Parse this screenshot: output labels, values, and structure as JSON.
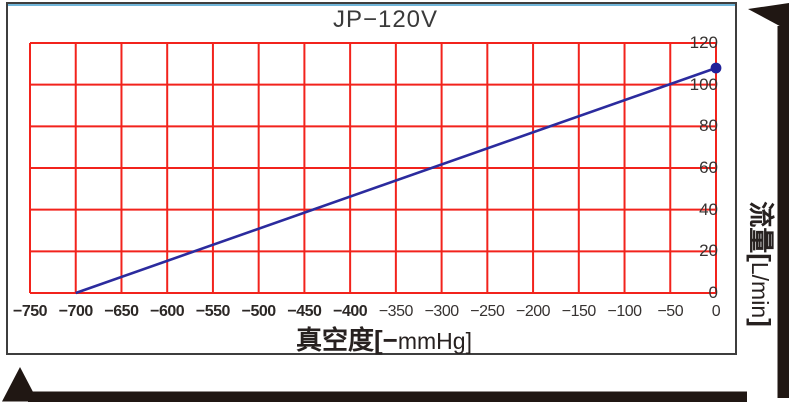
{
  "chart_data": {
    "type": "line",
    "title": "JP−120V",
    "xlabel": "真空度[−mmHg]",
    "xlabel_parts": {
      "bold": "真空度[−",
      "regular": "mmHg]"
    },
    "ylabel": "流量[L/min]",
    "ylabel_parts": {
      "bold_prefix": "流量[",
      "regular": "L/min",
      "bold_suffix": "]"
    },
    "xlim": [
      -750,
      0
    ],
    "ylim": [
      0,
      120
    ],
    "grid": true,
    "legend": false,
    "x_ticks": [
      {
        "label": "−750",
        "value": -750,
        "bold": true
      },
      {
        "label": "−700",
        "value": -700,
        "bold": true
      },
      {
        "label": "−650",
        "value": -650,
        "bold": true
      },
      {
        "label": "−600",
        "value": -600,
        "bold": true
      },
      {
        "label": "−550",
        "value": -550,
        "bold": true
      },
      {
        "label": "−500",
        "value": -500,
        "bold": true
      },
      {
        "label": "−450",
        "value": -450,
        "bold": true
      },
      {
        "label": "−400",
        "value": -400,
        "bold": true
      },
      {
        "label": "−350",
        "value": -350,
        "bold": false
      },
      {
        "label": "−300",
        "value": -300,
        "bold": false
      },
      {
        "label": "−250",
        "value": -250,
        "bold": false
      },
      {
        "label": "−200",
        "value": -200,
        "bold": false
      },
      {
        "label": "−150",
        "value": -150,
        "bold": false
      },
      {
        "label": "−100",
        "value": -100,
        "bold": false
      },
      {
        "label": "−50",
        "value": -50,
        "bold": false
      },
      {
        "label": "0",
        "value": 0,
        "bold": false
      }
    ],
    "y_ticks": [
      0,
      20,
      40,
      60,
      80,
      100,
      120
    ],
    "series": [
      {
        "name": "flow-vs-vacuum-curve",
        "color": "#2b2b9e",
        "points": [
          [
            -700,
            0
          ],
          [
            0,
            108
          ]
        ],
        "end_marker": true,
        "marker_color": "#22229a"
      }
    ],
    "colors": {
      "grid": "#f2231c",
      "line": "#2b2b9e",
      "frame": "#3e3e3e",
      "text": "#373332",
      "decor": "#201713",
      "top_accent": "#58a9d4"
    }
  }
}
